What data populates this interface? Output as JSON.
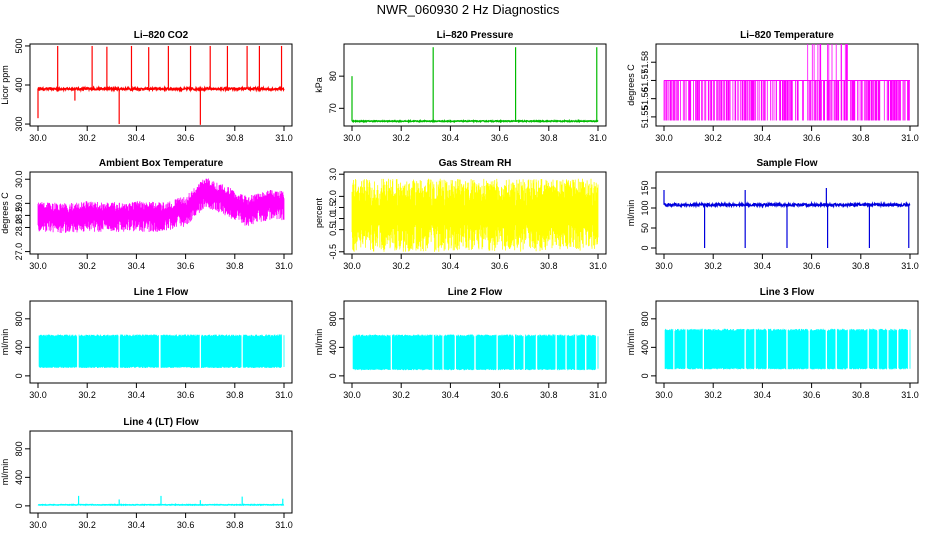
{
  "page": {
    "title": "NWR_060930  2 Hz Diagnostics"
  },
  "chart_data": [
    {
      "type": "line",
      "title": "Li–820 CO2",
      "ylabel": "Licor ppm",
      "color": "#ff0000",
      "xlim": [
        30.0,
        31.0
      ],
      "ylim": [
        295,
        505
      ],
      "xticks": [
        30.0,
        30.2,
        30.4,
        30.6,
        30.8,
        31.0
      ],
      "yticks": [
        300,
        400,
        500
      ],
      "series": [
        {
          "baseline": 390,
          "noise": 3,
          "pattern": "spikes",
          "spikes": [
            [
              30.0,
              315
            ],
            [
              30.08,
              500
            ],
            [
              30.15,
              360
            ],
            [
              30.22,
              500
            ],
            [
              30.28,
              498
            ],
            [
              30.33,
              300
            ],
            [
              30.38,
              500
            ],
            [
              30.45,
              497
            ],
            [
              30.53,
              500
            ],
            [
              30.62,
              500
            ],
            [
              30.66,
              298
            ],
            [
              30.7,
              500
            ],
            [
              30.77,
              500
            ],
            [
              30.85,
              500
            ],
            [
              30.9,
              500
            ],
            [
              30.99,
              500
            ]
          ]
        }
      ]
    },
    {
      "type": "line",
      "title": "Li–820 Pressure",
      "ylabel": "kPa",
      "color": "#00bb00",
      "xlim": [
        30.0,
        31.0
      ],
      "ylim": [
        64.5,
        90
      ],
      "xticks": [
        30.0,
        30.2,
        30.4,
        30.6,
        30.8,
        31.0
      ],
      "yticks": [
        70,
        80
      ],
      "series": [
        {
          "baseline": 66,
          "noise": 0.15,
          "pattern": "spikes",
          "spikes": [
            [
              30.0,
              80
            ],
            [
              30.33,
              89
            ],
            [
              30.665,
              89
            ],
            [
              30.995,
              89
            ]
          ]
        }
      ]
    },
    {
      "type": "line",
      "title": "Li–820 Temperature",
      "ylabel": "degrees C",
      "color": "#ff00ff",
      "xlim": [
        30.0,
        31.0
      ],
      "ylim": [
        51.545,
        51.59
      ],
      "xticks": [
        30.0,
        30.2,
        30.4,
        30.6,
        30.8,
        31.0
      ],
      "yticks": [
        51.55,
        51.56,
        51.57,
        51.58
      ],
      "series": [
        {
          "baseline": 51.57,
          "low": 51.548,
          "high": 51.59,
          "pattern": "steps"
        }
      ]
    },
    {
      "type": "line",
      "title": "Ambient Box Temperature",
      "ylabel": "degrees C",
      "color": "#ff00ff",
      "xlim": [
        30.0,
        31.0
      ],
      "ylim": [
        26.9,
        30.3
      ],
      "xticks": [
        30.0,
        30.2,
        30.4,
        30.6,
        30.8,
        31.0
      ],
      "yticks": [
        27.0,
        28.0,
        28.5,
        29.0,
        30.0
      ],
      "series": [
        {
          "pattern": "drift",
          "noise": 0.45,
          "trend": [
            [
              30.0,
              28.6
            ],
            [
              30.1,
              28.5
            ],
            [
              30.2,
              28.6
            ],
            [
              30.3,
              28.55
            ],
            [
              30.4,
              28.6
            ],
            [
              30.5,
              28.55
            ],
            [
              30.6,
              28.8
            ],
            [
              30.68,
              29.6
            ],
            [
              30.75,
              29.3
            ],
            [
              30.85,
              28.8
            ],
            [
              30.95,
              29.1
            ],
            [
              31.0,
              29.0
            ]
          ]
        }
      ]
    },
    {
      "type": "line",
      "title": "Gas Stream RH",
      "ylabel": "percent",
      "color": "#ffff00",
      "xlim": [
        30.0,
        31.0
      ],
      "ylim": [
        -0.6,
        3.1
      ],
      "xticks": [
        30.0,
        30.2,
        30.4,
        30.6,
        30.8,
        31.0
      ],
      "yticks": [
        -0.5,
        0.5,
        1.0,
        1.5,
        2.0,
        3.0
      ],
      "series": [
        {
          "baseline": 1.0,
          "low": -0.5,
          "high": 2.8,
          "pattern": "noise"
        }
      ]
    },
    {
      "type": "line",
      "title": "Sample Flow",
      "ylabel": "ml/min",
      "color": "#0000dd",
      "xlim": [
        30.0,
        31.0
      ],
      "ylim": [
        -15,
        190
      ],
      "xticks": [
        30.0,
        30.2,
        30.4,
        30.6,
        30.8,
        31.0
      ],
      "yticks": [
        0,
        50,
        100,
        150
      ],
      "series": [
        {
          "baseline": 108,
          "noise": 3,
          "pattern": "spikes",
          "spikes": [
            [
              30.0,
              145
            ],
            [
              30.165,
              0
            ],
            [
              30.33,
              145
            ],
            [
              30.33,
              0
            ],
            [
              30.5,
              0
            ],
            [
              30.66,
              150
            ],
            [
              30.665,
              0
            ],
            [
              30.835,
              0
            ],
            [
              30.995,
              0
            ]
          ]
        }
      ]
    },
    {
      "type": "line",
      "title": "Line 1 Flow",
      "ylabel": "ml/min",
      "color": "#00ffff",
      "xlim": [
        30.0,
        31.0
      ],
      "ylim": [
        -100,
        1050
      ],
      "xticks": [
        30.0,
        30.2,
        30.4,
        30.6,
        30.8,
        31.0
      ],
      "yticks": [
        0,
        400,
        800
      ],
      "series": [
        {
          "low": 110,
          "high": 580,
          "pattern": "band",
          "gaps": [
            30.0,
            30.162,
            30.33,
            30.495,
            30.66,
            30.83,
            30.995
          ]
        }
      ]
    },
    {
      "type": "line",
      "title": "Line 2 Flow",
      "ylabel": "ml/min",
      "color": "#00ffff",
      "xlim": [
        30.0,
        31.0
      ],
      "ylim": [
        -100,
        1050
      ],
      "xticks": [
        30.0,
        30.2,
        30.4,
        30.6,
        30.8,
        31.0
      ],
      "yticks": [
        0,
        400,
        800
      ],
      "series": [
        {
          "low": 80,
          "high": 580,
          "pattern": "band",
          "gaps": [
            30.0,
            30.16,
            30.33,
            30.37,
            30.42,
            30.5,
            30.59,
            30.66,
            30.7,
            30.75,
            30.83,
            30.87,
            30.91,
            30.95,
            30.995
          ]
        }
      ]
    },
    {
      "type": "line",
      "title": "Line 3 Flow",
      "ylabel": "ml/min",
      "color": "#00ffff",
      "xlim": [
        30.0,
        31.0
      ],
      "ylim": [
        -100,
        1050
      ],
      "xticks": [
        30.0,
        30.2,
        30.4,
        30.6,
        30.8,
        31.0
      ],
      "yticks": [
        0,
        400,
        800
      ],
      "series": [
        {
          "low": 90,
          "high": 660,
          "pattern": "band",
          "gaps": [
            30.0,
            30.04,
            30.09,
            30.16,
            30.33,
            30.37,
            30.42,
            30.5,
            30.59,
            30.66,
            30.7,
            30.75,
            30.83,
            30.87,
            30.91,
            30.95,
            30.995
          ]
        }
      ]
    },
    {
      "type": "line",
      "title": "Line 4 (LT) Flow",
      "ylabel": "ml/min",
      "color": "#00ffff",
      "xlim": [
        30.0,
        31.0
      ],
      "ylim": [
        -100,
        1050
      ],
      "xticks": [
        30.0,
        30.2,
        30.4,
        30.6,
        30.8,
        31.0
      ],
      "yticks": [
        0,
        400,
        800
      ],
      "series": [
        {
          "baseline": 15,
          "noise": 4,
          "pattern": "spikes",
          "spikes": [
            [
              30.165,
              140
            ],
            [
              30.33,
              90
            ],
            [
              30.5,
              140
            ],
            [
              30.66,
              80
            ],
            [
              30.83,
              130
            ],
            [
              30.995,
              100
            ]
          ]
        }
      ]
    }
  ]
}
